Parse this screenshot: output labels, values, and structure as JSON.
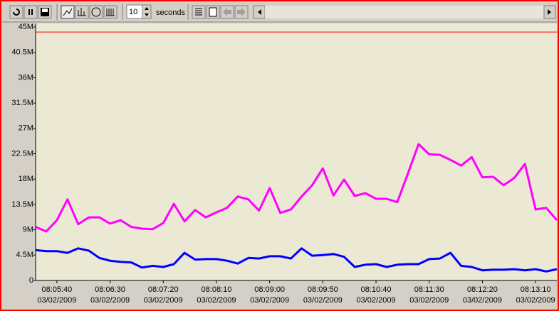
{
  "toolbar": {
    "interval": 10,
    "interval_unit": "seconds"
  },
  "chart_data": {
    "type": "line",
    "x": [
      320,
      330,
      340,
      350,
      360,
      370,
      380,
      390,
      400,
      410,
      420,
      430,
      440,
      450,
      460,
      470,
      480,
      490,
      500,
      510,
      520,
      530,
      540,
      550,
      560,
      570,
      580,
      590,
      600,
      610,
      620,
      630,
      640,
      650,
      660,
      670,
      680,
      690,
      700,
      710,
      720,
      730,
      740,
      750,
      760,
      770,
      780,
      790,
      800,
      810
    ],
    "series": [
      {
        "color": "#ff00ff",
        "values": [
          9.5,
          8.7,
          10.7,
          14.4,
          10.0,
          11.2,
          11.2,
          10.1,
          10.7,
          9.5,
          9.2,
          9.1,
          10.2,
          13.6,
          10.5,
          12.5,
          11.2,
          12.1,
          12.9,
          14.9,
          14.4,
          12.4,
          16.4,
          12.0,
          12.6,
          14.9,
          16.9,
          19.9,
          15.1,
          17.9,
          15.0,
          15.5,
          14.5,
          14.5,
          13.9,
          19.0,
          24.2,
          22.4,
          22.3,
          21.4,
          20.4,
          21.9,
          18.3,
          18.4,
          16.9,
          18.2,
          20.7,
          12.6,
          12.9,
          10.7
        ]
      },
      {
        "color": "#0000ff",
        "values": [
          5.4,
          5.2,
          5.2,
          4.9,
          5.7,
          5.3,
          4.0,
          3.5,
          3.3,
          3.2,
          2.3,
          2.6,
          2.4,
          2.9,
          4.9,
          3.7,
          3.8,
          3.8,
          3.5,
          3.0,
          4.0,
          3.9,
          4.3,
          4.3,
          3.9,
          5.7,
          4.4,
          4.5,
          4.7,
          4.2,
          2.4,
          2.8,
          2.9,
          2.4,
          2.8,
          2.9,
          2.9,
          3.8,
          3.9,
          4.9,
          2.6,
          2.4,
          1.8,
          1.9,
          1.9,
          2.0,
          1.8,
          2.0,
          1.6,
          2.0
        ]
      }
    ],
    "reference_line": {
      "value": 44.1,
      "color": "#ff0000"
    },
    "xlim": [
      320,
      810
    ],
    "xticks": [
      {
        "value": 340,
        "label": [
          "08:05:40",
          "03/02/2009"
        ]
      },
      {
        "value": 390,
        "label": [
          "08:06:30",
          "03/02/2009"
        ]
      },
      {
        "value": 440,
        "label": [
          "08:07:20",
          "03/02/2009"
        ]
      },
      {
        "value": 490,
        "label": [
          "08:08:10",
          "03/02/2009"
        ]
      },
      {
        "value": 540,
        "label": [
          "08:09:00",
          "03/02/2009"
        ]
      },
      {
        "value": 590,
        "label": [
          "08:09:50",
          "03/02/2009"
        ]
      },
      {
        "value": 640,
        "label": [
          "08:10:40",
          "03/02/2009"
        ]
      },
      {
        "value": 690,
        "label": [
          "08:11:30",
          "03/02/2009"
        ]
      },
      {
        "value": 740,
        "label": [
          "08:12:20",
          "03/02/2009"
        ]
      },
      {
        "value": 790,
        "label": [
          "08:13:10",
          "03/02/2009"
        ]
      }
    ],
    "ylim": [
      0,
      45
    ],
    "yticks": [
      0,
      {
        "value": 4.5,
        "label": "4.5M"
      },
      {
        "value": 9,
        "label": "9M"
      },
      {
        "value": 13.5,
        "label": "13.5M"
      },
      {
        "value": 18,
        "label": "18M"
      },
      {
        "value": 22.5,
        "label": "22.5M"
      },
      {
        "value": 27,
        "label": "27M"
      },
      {
        "value": 31.5,
        "label": "31.5M"
      },
      {
        "value": 36,
        "label": "36M"
      },
      {
        "value": 40.5,
        "label": "40.5M"
      },
      {
        "value": 45,
        "label": "45M"
      }
    ]
  }
}
